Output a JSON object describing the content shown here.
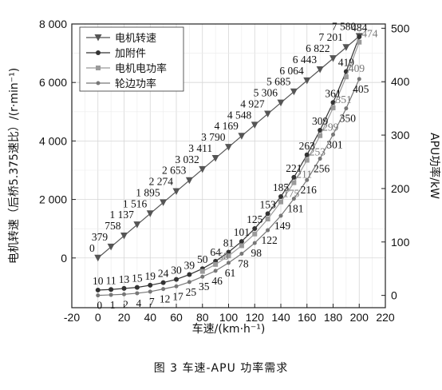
{
  "caption": "图 3   车速-APU 功率需求",
  "chart_data": {
    "type": "line",
    "xlabel": "车速/(km·h⁻¹)",
    "ylabel_left": "电机转速（后桥5.375速比）/(r·min⁻¹)",
    "ylabel_right": "APU功率/kW",
    "x_ticks": [
      "-20",
      "0",
      "20",
      "40",
      "60",
      "80",
      "100",
      "120",
      "140",
      "160",
      "180",
      "200",
      "220"
    ],
    "y_left_ticks": [
      "0",
      "2 000",
      "4 000",
      "6 000",
      "8 000"
    ],
    "y_right_ticks": [
      "0",
      "100",
      "200",
      "300",
      "400",
      "500"
    ],
    "xlim": [
      -20,
      220
    ],
    "ylim_left": [
      -1700,
      8000
    ],
    "ylim_right": [
      -23,
      508
    ],
    "grid": true,
    "legend_position": "top-left",
    "series": [
      {
        "name": "电机转速",
        "axis": "left",
        "marker": "triangle-down",
        "color": "#555555",
        "x": [
          0,
          10,
          20,
          30,
          40,
          50,
          60,
          70,
          80,
          90,
          100,
          110,
          120,
          130,
          140,
          150,
          160,
          170,
          180,
          190,
          200
        ],
        "y": [
          0,
          379,
          758,
          1137,
          1516,
          1895,
          2274,
          2653,
          3032,
          3411,
          3790,
          4169,
          4548,
          4927,
          5306,
          5685,
          6064,
          6443,
          6822,
          7201,
          7580
        ],
        "labels": [
          "0",
          "379",
          "758",
          "1 137",
          "1 516",
          "1 895",
          "2 274",
          "2 653",
          "3 032",
          "3 411",
          "3 790",
          "4 169",
          "4 548",
          "4 927",
          "5 306",
          "5 685",
          "6 064",
          "6 443",
          "6 822",
          "7 201",
          "7 580"
        ]
      },
      {
        "name": "加附件",
        "axis": "right",
        "marker": "circle",
        "color": "#333333",
        "x": [
          0,
          10,
          20,
          30,
          40,
          50,
          60,
          70,
          80,
          90,
          100,
          110,
          120,
          130,
          140,
          150,
          160,
          170,
          180,
          190,
          200
        ],
        "y": [
          10,
          11,
          13,
          15,
          19,
          24,
          30,
          39,
          50,
          64,
          81,
          101,
          125,
          153,
          185,
          221,
          263,
          309,
          361,
          419,
          484
        ],
        "labels": [
          "10",
          "11",
          "13",
          "15",
          "19",
          "24",
          "30",
          "39",
          "50",
          "64",
          "81",
          "101",
          "125",
          "153",
          "185",
          "221",
          "263",
          "309",
          "361",
          "419",
          "484"
        ]
      },
      {
        "name": "电机电功率",
        "axis": "right",
        "marker": "square",
        "color": "#9a9a9a",
        "x": [
          80,
          90,
          100,
          110,
          120,
          130,
          140,
          150,
          160,
          170,
          180,
          190,
          200
        ],
        "y": [
          45,
          58,
          74,
          93,
          115,
          143,
          175,
          211,
          253,
          299,
          351,
          409,
          474
        ],
        "labels": [
          "",
          "58",
          "",
          "",
          "",
          "",
          "175",
          "211",
          "253",
          "299",
          "351",
          "409",
          "474"
        ]
      },
      {
        "name": "轮边功率",
        "axis": "right",
        "marker": "circle-small",
        "color": "#777777",
        "x": [
          0,
          10,
          20,
          30,
          40,
          50,
          60,
          70,
          80,
          90,
          100,
          110,
          120,
          130,
          140,
          150,
          160,
          170,
          180,
          190,
          200
        ],
        "y": [
          0,
          1,
          2,
          4,
          7,
          12,
          17,
          25,
          35,
          46,
          61,
          78,
          98,
          122,
          149,
          181,
          216,
          256,
          301,
          350,
          405
        ],
        "labels": [
          "0",
          "1",
          "2",
          "4",
          "7",
          "12",
          "17",
          "25",
          "35",
          "46",
          "61",
          "78",
          "98",
          "122",
          "149",
          "181",
          "216",
          "256",
          "301",
          "350",
          "405"
        ]
      }
    ]
  }
}
